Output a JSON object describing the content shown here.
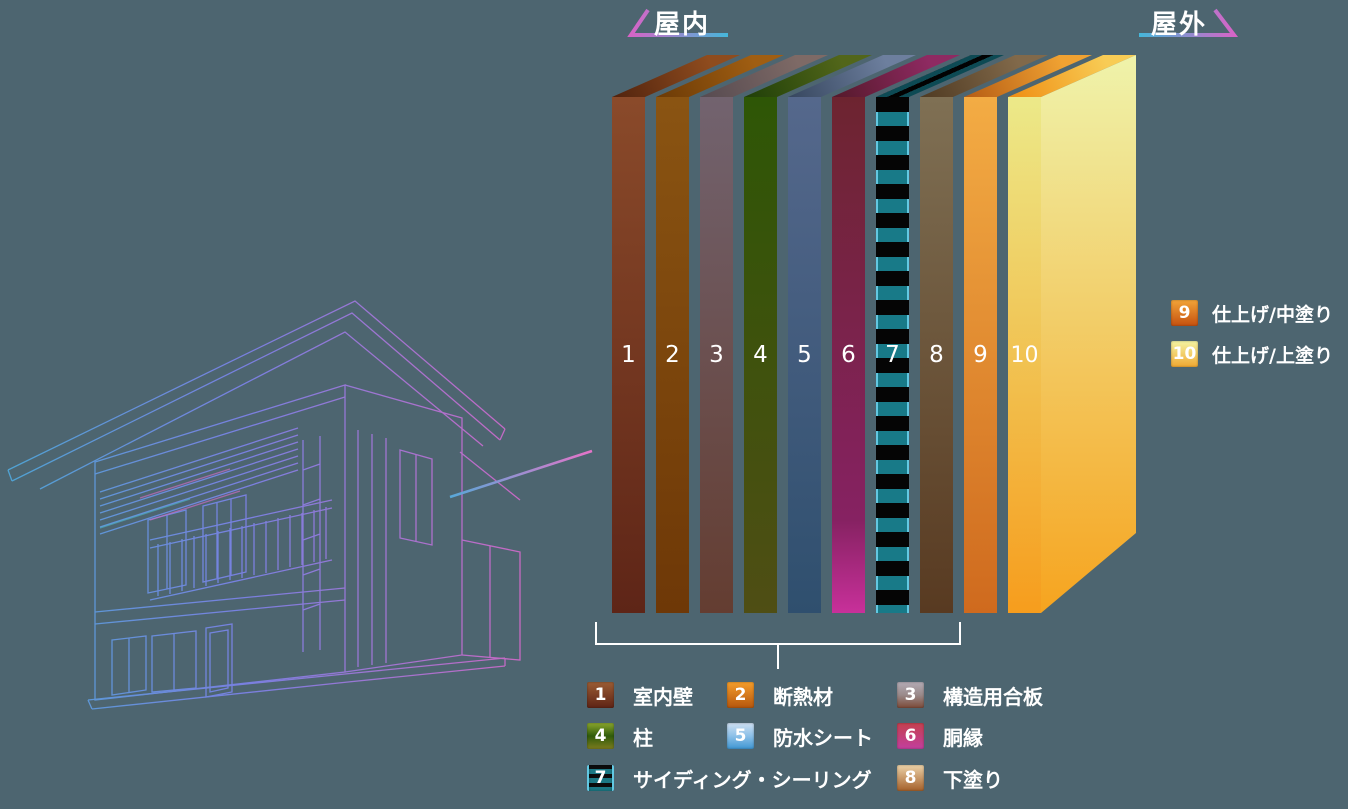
{
  "background": "#4d6570",
  "header": {
    "indoor_label": "屋内",
    "outdoor_label": "屋外",
    "arrow_colors": [
      "#d863c6",
      "#45b7da"
    ]
  },
  "wall": {
    "description_note": "10-layer exterior wall cutaway, numbered 1-10 from indoor to outdoor",
    "layers": [
      {
        "num": "1",
        "label": "室内壁",
        "front": [
          "#8a4a2a",
          "#5e2517"
        ],
        "top": [
          "#51230e",
          "#8f4c1e"
        ],
        "swatch": [
          "#9a5c34",
          "#5e2315"
        ]
      },
      {
        "num": "2",
        "label": "断熱材",
        "front": [
          "#8a5412",
          "#6e3807"
        ],
        "top": [
          "#6b3a06",
          "#a05e12"
        ],
        "swatch": [
          "#f59d2a",
          "#b5560e"
        ]
      },
      {
        "num": "3",
        "label": "構造用合板",
        "front": [
          "#72636f",
          "#643d31"
        ],
        "top": [
          "#564a50",
          "#7e6a66"
        ],
        "swatch": [
          "#b3abb5",
          "#9a8a8a",
          "#7c4a38"
        ]
      },
      {
        "num": "4",
        "label": "柱",
        "front": [
          "#2e5606",
          "#4f4e14"
        ],
        "top": [
          "#1f3f08",
          "#52661a"
        ],
        "swatch": [
          "#8aa62e",
          "#2f5b0a",
          "#7c7c1e"
        ]
      },
      {
        "num": "5",
        "label": "防水シート",
        "front": [
          "#55688c",
          "#2f4f6e"
        ],
        "top": [
          "#36465e",
          "#6d7f9e"
        ],
        "swatch": [
          "#cfe0f2",
          "#8cc0e8",
          "#3f96d2"
        ]
      },
      {
        "num": "6",
        "label": "胴縁",
        "front": [
          "#6d2430",
          "#862262",
          "#c8309a"
        ],
        "top": [
          "#54192a",
          "#8f2a62"
        ],
        "swatch": [
          "#c4404e",
          "#c23f9e"
        ]
      },
      {
        "num": "7",
        "label": "サイディング・シーリング",
        "striped": true,
        "edge": "#62c8e2",
        "front": [
          "#050505",
          "#187a88"
        ],
        "top": [
          "#0d4a54",
          "#020202"
        ],
        "swatch": [
          "#0c0c0c",
          "#1b7884"
        ]
      },
      {
        "num": "8",
        "label": "下塗り",
        "front": [
          "#7f7054",
          "#583a21"
        ],
        "top": [
          "#4f3a22",
          "#81694a"
        ],
        "swatch": [
          "#ecd2a8",
          "#a4602a"
        ]
      },
      {
        "num": "9",
        "label": "仕上げ/中塗り",
        "front": [
          "#f3ac44",
          "#cf6a1e"
        ],
        "top": [
          "#b55c14",
          "#f0a232"
        ],
        "swatch": [
          "#f2a438",
          "#c5500f"
        ]
      },
      {
        "num": "10",
        "label": "仕上げ/上塗り",
        "front": [
          "#ece989",
          "#f69d1d"
        ],
        "top": [
          "#ef8d12",
          "#f8cc55"
        ],
        "side": [
          "#eff3ab",
          "#f6a41f"
        ],
        "swatch": [
          "#f4f4a2",
          "#f0a832"
        ]
      }
    ]
  }
}
